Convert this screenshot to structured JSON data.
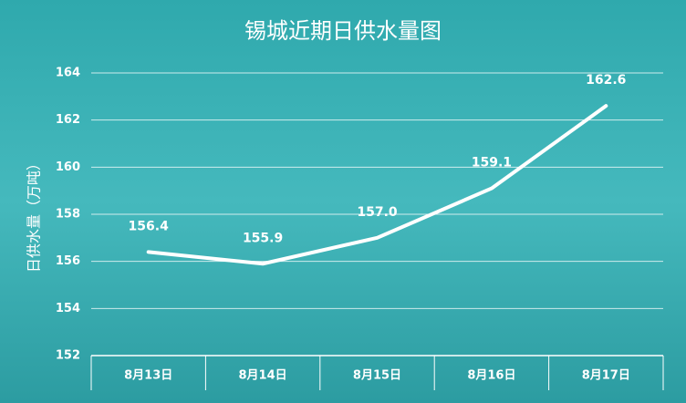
{
  "chart_data": {
    "type": "line",
    "title": "锡城近期日供水量图",
    "y_label": "日供水量（万吨）",
    "categories": [
      "8月13日",
      "8月14日",
      "8月15日",
      "8月16日",
      "8月17日"
    ],
    "values": [
      156.4,
      155.9,
      157.0,
      159.1,
      162.6
    ],
    "value_labels": [
      "156.4",
      "155.9",
      "157.0",
      "159.1",
      "162.6"
    ],
    "color": "#ffffff",
    "ylim": [
      152,
      164
    ],
    "yticks": [
      152,
      154,
      156,
      158,
      160,
      162,
      164
    ],
    "grid": true
  }
}
